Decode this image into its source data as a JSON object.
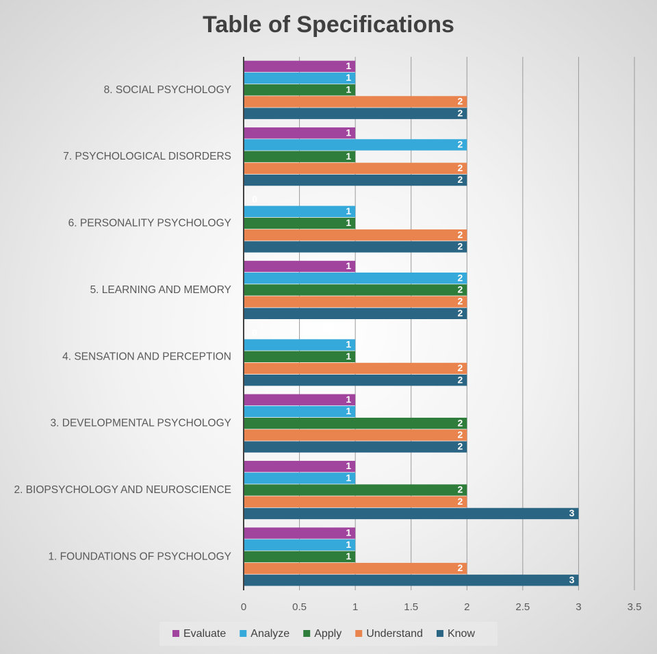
{
  "chart_data": {
    "type": "bar",
    "orientation": "horizontal",
    "title": "Table of Specifications",
    "categories": [
      "1. FOUNDATIONS OF PSYCHOLOGY",
      "2. BIOPSYCHOLOGY AND NEUROSCIENCE",
      "3. DEVELOPMENTAL PSYCHOLOGY",
      "4. SENSATION AND PERCEPTION",
      "5. LEARNING AND MEMORY",
      "6. PERSONALITY PSYCHOLOGY",
      "7. PSYCHOLOGICAL DISORDERS",
      "8. SOCIAL PSYCHOLOGY"
    ],
    "series": [
      {
        "name": "Evaluate",
        "color": "#a0449e",
        "values": [
          1,
          1,
          1,
          0,
          1,
          0,
          1,
          1
        ]
      },
      {
        "name": "Analyze",
        "color": "#35a9da",
        "values": [
          1,
          1,
          1,
          1,
          2,
          1,
          2,
          1
        ]
      },
      {
        "name": "Apply",
        "color": "#2f7d3b",
        "values": [
          1,
          2,
          2,
          1,
          2,
          1,
          1,
          1
        ]
      },
      {
        "name": "Understand",
        "color": "#e9844e",
        "values": [
          2,
          2,
          2,
          2,
          2,
          2,
          2,
          2
        ]
      },
      {
        "name": "Know",
        "color": "#2b6584",
        "values": [
          3,
          3,
          2,
          2,
          2,
          2,
          2,
          2
        ]
      }
    ],
    "xlim": [
      0,
      3.5
    ],
    "xticks": [
      0,
      0.5,
      1,
      1.5,
      2,
      2.5,
      3,
      3.5
    ],
    "grid": true,
    "legend": "bottom"
  }
}
